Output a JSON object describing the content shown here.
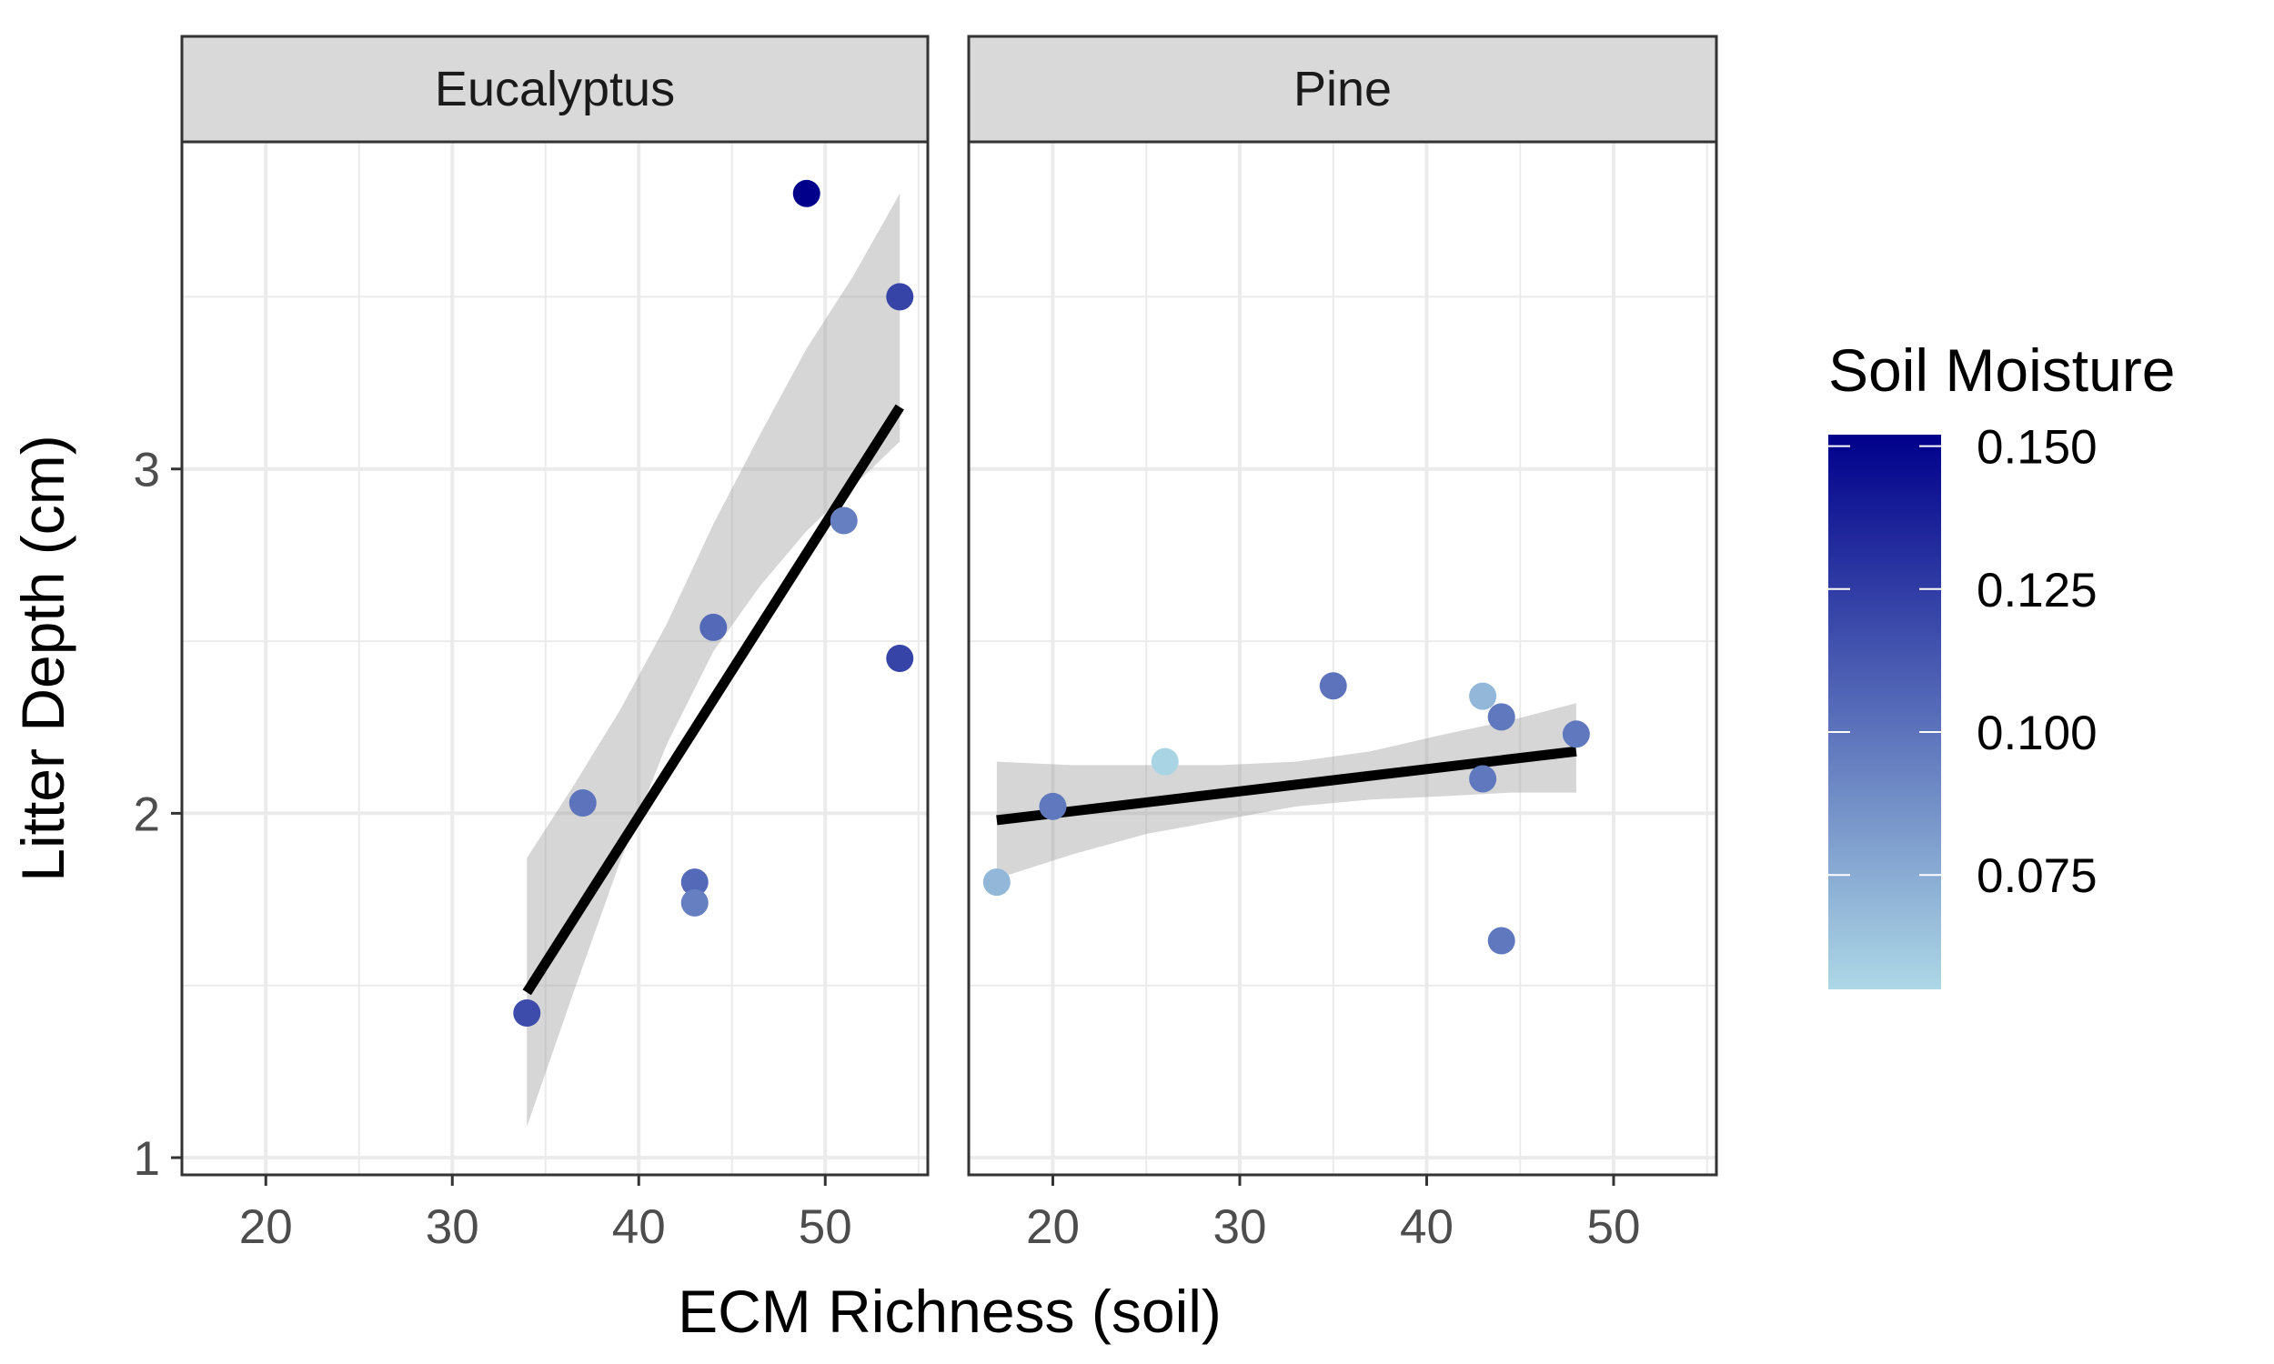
{
  "chart_data": {
    "type": "scatter",
    "facets": [
      "Eucalyptus",
      "Pine"
    ],
    "xlabel": "ECM Richness (soil)",
    "ylabel": "Litter Depth (cm)",
    "xlim": [
      15.5,
      55.5
    ],
    "ylim": [
      0.95,
      3.95
    ],
    "x_ticks": [
      20,
      30,
      40,
      50
    ],
    "y_ticks": [
      1,
      2,
      3
    ],
    "grid": true,
    "legend": {
      "title": "Soil Moisture",
      "position": "right",
      "scale": "continuous",
      "min": 0.055,
      "max": 0.152,
      "low_color": "#ADD8E6",
      "high_color": "#00008B",
      "ticks": [
        0.15,
        0.125,
        0.1,
        0.075
      ],
      "tick_labels": [
        "0.150",
        "0.125",
        "0.100",
        "0.075"
      ]
    },
    "panels": [
      {
        "facet": "Eucalyptus",
        "points": [
          {
            "x": 34,
            "y": 1.42,
            "moisture": 0.118
          },
          {
            "x": 37,
            "y": 2.03,
            "moisture": 0.1
          },
          {
            "x": 43,
            "y": 1.8,
            "moisture": 0.105
          },
          {
            "x": 43,
            "y": 1.74,
            "moisture": 0.095
          },
          {
            "x": 44,
            "y": 2.54,
            "moisture": 0.105
          },
          {
            "x": 49,
            "y": 3.8,
            "moisture": 0.152
          },
          {
            "x": 51,
            "y": 2.85,
            "moisture": 0.095
          },
          {
            "x": 54,
            "y": 3.5,
            "moisture": 0.122
          },
          {
            "x": 54,
            "y": 2.45,
            "moisture": 0.122
          }
        ],
        "fit": {
          "x": [
            34,
            54
          ],
          "y": [
            1.48,
            3.18
          ]
        },
        "ci": [
          {
            "x": 34,
            "lo": 1.09,
            "hi": 1.87
          },
          {
            "x": 36.5,
            "lo": 1.48,
            "hi": 2.08
          },
          {
            "x": 39,
            "lo": 1.86,
            "hi": 2.3
          },
          {
            "x": 41.5,
            "lo": 2.2,
            "hi": 2.55
          },
          {
            "x": 44,
            "lo": 2.47,
            "hi": 2.84
          },
          {
            "x": 46.5,
            "lo": 2.66,
            "hi": 3.1
          },
          {
            "x": 49,
            "lo": 2.82,
            "hi": 3.35
          },
          {
            "x": 51.5,
            "lo": 2.95,
            "hi": 3.56
          },
          {
            "x": 54,
            "lo": 3.08,
            "hi": 3.8
          }
        ]
      },
      {
        "facet": "Pine",
        "points": [
          {
            "x": 17,
            "y": 1.8,
            "moisture": 0.07
          },
          {
            "x": 20,
            "y": 2.02,
            "moisture": 0.098
          },
          {
            "x": 26,
            "y": 2.15,
            "moisture": 0.057
          },
          {
            "x": 35,
            "y": 2.37,
            "moisture": 0.1
          },
          {
            "x": 43,
            "y": 2.34,
            "moisture": 0.07
          },
          {
            "x": 43,
            "y": 2.1,
            "moisture": 0.098
          },
          {
            "x": 44,
            "y": 2.28,
            "moisture": 0.098
          },
          {
            "x": 44,
            "y": 1.63,
            "moisture": 0.098
          },
          {
            "x": 48,
            "y": 2.23,
            "moisture": 0.098
          }
        ],
        "fit": {
          "x": [
            17,
            48
          ],
          "y": [
            1.98,
            2.18
          ]
        },
        "ci": [
          {
            "x": 17,
            "lo": 1.81,
            "hi": 2.15
          },
          {
            "x": 21,
            "lo": 1.88,
            "hi": 2.14
          },
          {
            "x": 25,
            "lo": 1.94,
            "hi": 2.14
          },
          {
            "x": 29,
            "lo": 1.98,
            "hi": 2.14
          },
          {
            "x": 33,
            "lo": 2.02,
            "hi": 2.15
          },
          {
            "x": 37,
            "lo": 2.04,
            "hi": 2.18
          },
          {
            "x": 41,
            "lo": 2.05,
            "hi": 2.23
          },
          {
            "x": 44.5,
            "lo": 2.06,
            "hi": 2.27
          },
          {
            "x": 48,
            "lo": 2.06,
            "hi": 2.32
          }
        ]
      }
    ]
  }
}
